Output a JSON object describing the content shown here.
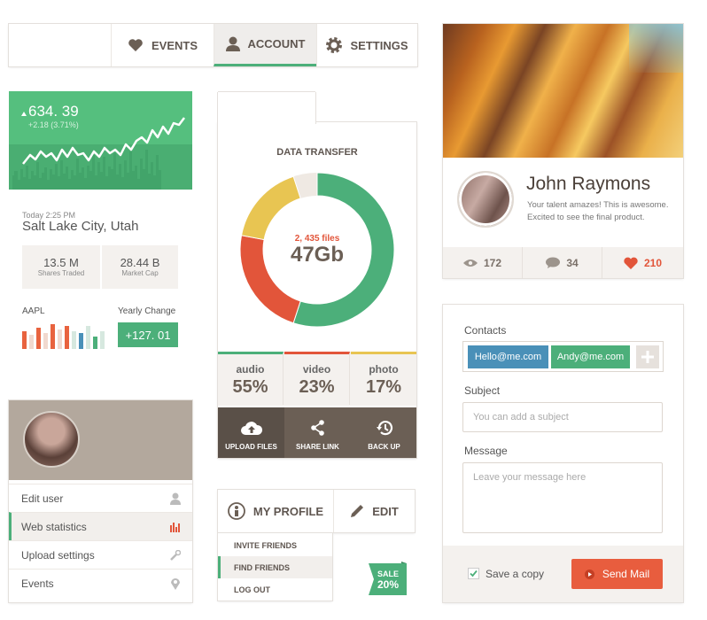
{
  "nav_tabs": [
    "EVENTS",
    "ACCOUNT",
    "SETTINGS"
  ],
  "stock": {
    "price": "634. 39",
    "change": "+2.18 (3.71%)",
    "time": "Today 2:25 PM",
    "city": "Salt Lake City, Utah",
    "shares_value": "13.5 M",
    "shares_label": "Shares Traded",
    "cap_value": "28.44 B",
    "cap_label": "Market Cap",
    "symbol": "AAPL",
    "yearly_label": "Yearly Change",
    "yearly_value": "+127. 01"
  },
  "user_menu": {
    "items": [
      "Edit user",
      "Web statistics",
      "Upload settings",
      "Events"
    ]
  },
  "transfer": {
    "title": "DATA TRANSFER",
    "files": "2, 435 files",
    "total": "47Gb",
    "segments": [
      {
        "name": "audio",
        "value": 55,
        "label": "55%",
        "color": "#4caf7a"
      },
      {
        "name": "video",
        "value": 23,
        "label": "23%",
        "color": "#e2553a"
      },
      {
        "name": "photo",
        "value": 17,
        "label": "17%",
        "color": "#e8c552"
      }
    ],
    "actions": [
      "UPLOAD FILES",
      "SHARE LINK",
      "BACK UP"
    ]
  },
  "profile_menu": {
    "tabs": [
      "MY PROFILE",
      "EDIT"
    ],
    "items": [
      "INVITE FRIENDS",
      "FIND FRIENDS",
      "LOG OUT"
    ]
  },
  "sale": {
    "label": "SALE",
    "value": "20%"
  },
  "profile_card": {
    "name": "John Raymons",
    "bio": [
      "Your talent amazes! This is awesome.",
      "Excited to see the final product."
    ],
    "stats": [
      172,
      34,
      210
    ]
  },
  "contact_form": {
    "contacts_label": "Contacts",
    "tags": [
      "Hello@me.com",
      "Andy@me.com"
    ],
    "subject_label": "Subject",
    "subject_placeholder": "You can add a subject",
    "message_label": "Message",
    "message_placeholder": "Leave your message here",
    "save_copy": "Save a copy",
    "send": "Send Mail"
  }
}
